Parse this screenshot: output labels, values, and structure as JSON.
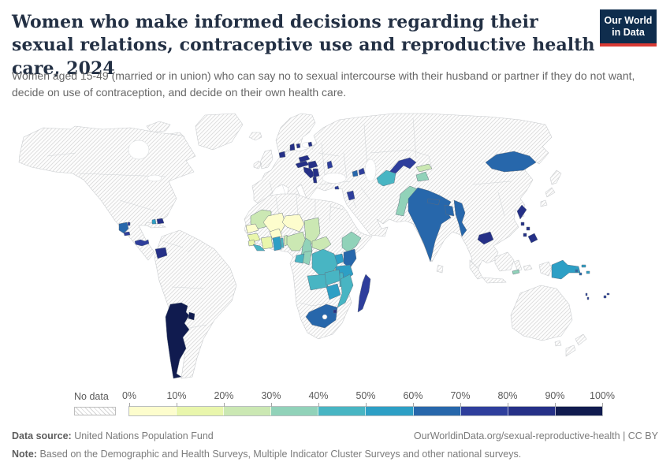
{
  "header": {
    "title": "Women who make informed decisions regarding their sexual relations, contraceptive use and reproductive health care, 2024",
    "subtitle": "Women aged 15-49 (married or in union) who can say no to sexual intercourse with their husband or partner if they do not want, decide on use of contraception, and decide on their own health care.",
    "logo": {
      "line1": "Our World",
      "line2": "in Data",
      "bg_color": "#0f2d4d",
      "accent_color": "#d93a34"
    }
  },
  "legend": {
    "no_data_label": "No data",
    "ticks": [
      "0%",
      "10%",
      "20%",
      "30%",
      "40%",
      "50%",
      "60%",
      "70%",
      "80%",
      "90%",
      "100%"
    ]
  },
  "chart_data": {
    "type": "heatmap",
    "variant": "world-choropleth",
    "title": "Women who make informed decisions regarding their sexual relations, contraceptive use and reproductive health care, 2024",
    "unit": "% of women aged 15-49",
    "axis_range": [
      0,
      100
    ],
    "legend_position": "bottom",
    "no_data_pattern": "diagonal-hatch",
    "bins": [
      {
        "range": "0-10%",
        "color": "#fdfdcd"
      },
      {
        "range": "10-20%",
        "color": "#e9f6ac"
      },
      {
        "range": "20-30%",
        "color": "#cbe8b3"
      },
      {
        "range": "30-40%",
        "color": "#91d2b9"
      },
      {
        "range": "40-50%",
        "color": "#48b5c3"
      },
      {
        "range": "50-60%",
        "color": "#2d9fc5"
      },
      {
        "range": "60-70%",
        "color": "#2767ab"
      },
      {
        "range": "70-80%",
        "color": "#2e3e9c"
      },
      {
        "range": "80-90%",
        "color": "#253087"
      },
      {
        "range": "90-100%",
        "color": "#101b4f"
      }
    ],
    "countries": {
      "argentina": {
        "name": "Argentina",
        "bin": 9,
        "range": "90-100%"
      },
      "uruguay": {
        "name": "Uruguay",
        "bin": 9,
        "range": "90-100%"
      },
      "ecuador": {
        "name": "Ecuador",
        "bin": 8,
        "range": "80-90%"
      },
      "guatemala": {
        "name": "Guatemala",
        "bin": 6,
        "range": "60-70%"
      },
      "belize": {
        "name": "Belize",
        "bin": 7,
        "range": "70-80%"
      },
      "el-salvador": {
        "name": "El Salvador",
        "bin": 7,
        "range": "70-80%"
      },
      "panama": {
        "name": "Panama",
        "bin": 7,
        "range": "70-80%"
      },
      "haiti": {
        "name": "Haiti",
        "bin": 5,
        "range": "50-60%"
      },
      "dominican-republic": {
        "name": "Dominican Republic",
        "bin": 8,
        "range": "80-90%"
      },
      "netherlands": {
        "name": "Netherlands",
        "bin": 8,
        "range": "80-90%"
      },
      "denmark": {
        "name": "Denmark",
        "bin": 8,
        "range": "80-90%"
      },
      "lithuania": {
        "name": "Lithuania",
        "bin": 8,
        "range": "80-90%"
      },
      "czechia": {
        "name": "Czechia",
        "bin": 8,
        "range": "80-90%"
      },
      "austria": {
        "name": "Austria",
        "bin": 8,
        "range": "80-90%"
      },
      "hungary": {
        "name": "Hungary",
        "bin": 8,
        "range": "80-90%"
      },
      "croatia": {
        "name": "Croatia",
        "bin": 8,
        "range": "80-90%"
      },
      "serbia": {
        "name": "Serbia",
        "bin": 8,
        "range": "80-90%"
      },
      "albania": {
        "name": "Albania",
        "bin": 8,
        "range": "80-90%"
      },
      "moldova": {
        "name": "Moldova",
        "bin": 7,
        "range": "70-80%"
      },
      "cyprus": {
        "name": "Cyprus",
        "bin": 7,
        "range": "70-80%"
      },
      "armenia": {
        "name": "Armenia",
        "bin": 6,
        "range": "60-70%"
      },
      "azerbaijan": {
        "name": "Azerbaijan",
        "bin": 7,
        "range": "70-80%"
      },
      "jordan": {
        "name": "Jordan",
        "bin": 7,
        "range": "70-80%"
      },
      "uzbekistan": {
        "name": "Uzbekistan",
        "bin": 7,
        "range": "70-80%"
      },
      "turkmenistan": {
        "name": "Turkmenistan",
        "bin": 4,
        "range": "40-50%"
      },
      "kyrgyzstan": {
        "name": "Kyrgyzstan",
        "bin": 2,
        "range": "20-30%"
      },
      "tajikistan": {
        "name": "Tajikistan",
        "bin": 3,
        "range": "30-40%"
      },
      "mongolia": {
        "name": "Mongolia",
        "bin": 6,
        "range": "60-70%"
      },
      "pakistan": {
        "name": "Pakistan",
        "bin": 3,
        "range": "30-40%"
      },
      "india": {
        "name": "India",
        "bin": 6,
        "range": "60-70%"
      },
      "nepal": {
        "name": "Nepal",
        "bin": 6,
        "range": "60-70%"
      },
      "bangladesh": {
        "name": "Bangladesh",
        "bin": 6,
        "range": "60-70%"
      },
      "myanmar": {
        "name": "Myanmar",
        "bin": 6,
        "range": "60-70%"
      },
      "cambodia": {
        "name": "Cambodia",
        "bin": 8,
        "range": "80-90%"
      },
      "philippines": {
        "name": "Philippines",
        "bin": 8,
        "range": "80-90%"
      },
      "timor-leste": {
        "name": "Timor-Leste",
        "bin": 3,
        "range": "30-40%"
      },
      "papua-new-guinea": {
        "name": "Papua New Guinea",
        "bin": 5,
        "range": "50-60%"
      },
      "solomon-islands": {
        "name": "Solomon Islands",
        "bin": 6,
        "range": "60-70%"
      },
      "vanuatu": {
        "name": "Vanuatu",
        "bin": 7,
        "range": "70-80%"
      },
      "fiji": {
        "name": "Fiji",
        "bin": 7,
        "range": "70-80%"
      },
      "mauritania": {
        "name": "Mauritania",
        "bin": 2,
        "range": "20-30%"
      },
      "mali": {
        "name": "Mali",
        "bin": 0,
        "range": "0-10%"
      },
      "senegal": {
        "name": "Senegal",
        "bin": 0,
        "range": "0-10%"
      },
      "guinea": {
        "name": "Guinea",
        "bin": 1,
        "range": "10-20%"
      },
      "sierra-leone": {
        "name": "Sierra Leone",
        "bin": 1,
        "range": "10-20%"
      },
      "liberia": {
        "name": "Liberia",
        "bin": 4,
        "range": "40-50%"
      },
      "cote-divoire": {
        "name": "Côte d'Ivoire",
        "bin": 1,
        "range": "10-20%"
      },
      "burkina-faso": {
        "name": "Burkina Faso",
        "bin": 0,
        "range": "0-10%"
      },
      "ghana": {
        "name": "Ghana",
        "bin": 5,
        "range": "50-60%"
      },
      "togo": {
        "name": "Togo",
        "bin": 4,
        "range": "40-50%"
      },
      "benin": {
        "name": "Benin",
        "bin": 2,
        "range": "20-30%"
      },
      "niger": {
        "name": "Niger",
        "bin": 0,
        "range": "0-10%"
      },
      "nigeria": {
        "name": "Nigeria",
        "bin": 2,
        "range": "20-30%"
      },
      "chad": {
        "name": "Chad",
        "bin": 2,
        "range": "20-30%"
      },
      "cameroon": {
        "name": "Cameroon",
        "bin": 3,
        "range": "30-40%"
      },
      "central-african-republic": {
        "name": "Central African Republic",
        "bin": 2,
        "range": "20-30%"
      },
      "ethiopia": {
        "name": "Ethiopia",
        "bin": 3,
        "range": "30-40%"
      },
      "uganda": {
        "name": "Uganda",
        "bin": 5,
        "range": "50-60%"
      },
      "kenya": {
        "name": "Kenya",
        "bin": 6,
        "range": "60-70%"
      },
      "rwanda": {
        "name": "Rwanda",
        "bin": 4,
        "range": "40-50%"
      },
      "burundi": {
        "name": "Burundi",
        "bin": 3,
        "range": "30-40%"
      },
      "tanzania": {
        "name": "Tanzania",
        "bin": 5,
        "range": "50-60%"
      },
      "democratic-republic-of-congo": {
        "name": "Democratic Republic of Congo",
        "bin": 4,
        "range": "40-50%"
      },
      "congo": {
        "name": "Congo",
        "bin": 3,
        "range": "30-40%"
      },
      "gabon": {
        "name": "Gabon",
        "bin": 4,
        "range": "40-50%"
      },
      "angola": {
        "name": "Angola",
        "bin": 4,
        "range": "40-50%"
      },
      "zambia": {
        "name": "Zambia",
        "bin": 4,
        "range": "40-50%"
      },
      "malawi": {
        "name": "Malawi",
        "bin": 4,
        "range": "40-50%"
      },
      "mozambique": {
        "name": "Mozambique",
        "bin": 4,
        "range": "40-50%"
      },
      "zimbabwe": {
        "name": "Zimbabwe",
        "bin": 5,
        "range": "50-60%"
      },
      "south-africa": {
        "name": "South Africa",
        "bin": 6,
        "range": "60-70%"
      },
      "eswatini": {
        "name": "Eswatini",
        "bin": 8,
        "range": "80-90%"
      },
      "madagascar": {
        "name": "Madagascar",
        "bin": 7,
        "range": "70-80%"
      }
    },
    "no_data_regions": [
      "United States",
      "Canada",
      "Greenland",
      "Mexico",
      "Cuba",
      "Brazil",
      "Colombia",
      "Venezuela",
      "Peru",
      "Bolivia",
      "Chile",
      "Paraguay",
      "United Kingdom",
      "Ireland",
      "Iceland",
      "France",
      "Spain",
      "Portugal",
      "Germany",
      "Poland",
      "Ukraine",
      "Italy",
      "Greece",
      "Turkey",
      "Russia",
      "Kazakhstan",
      "Afghanistan",
      "Iran",
      "Saudi Arabia",
      "Egypt",
      "Libya",
      "Algeria",
      "Morocco",
      "Sudan",
      "South Sudan",
      "Somalia",
      "Namibia",
      "Botswana",
      "Lesotho",
      "China",
      "Thailand",
      "Vietnam",
      "Laos",
      "Indonesia",
      "Japan",
      "Sri Lanka",
      "Australia",
      "New Zealand"
    ]
  },
  "footer": {
    "source_label": "Data source:",
    "source": "United Nations Population Fund",
    "link_text": "OurWorldinData.org/sexual-reproductive-health | CC BY",
    "note_label": "Note:",
    "note": "Based on the Demographic and Health Surveys, Multiple Indicator Cluster Surveys and other national surveys."
  }
}
